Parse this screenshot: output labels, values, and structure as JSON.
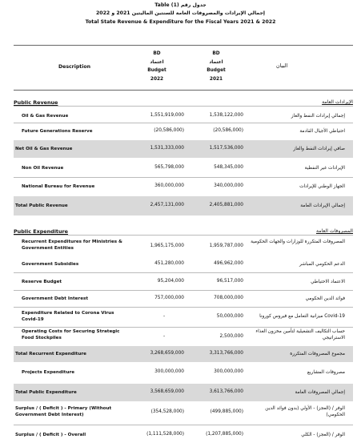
{
  "titles": {
    "line1": "Table (1) جدول رقم",
    "line2": "إجمالي الإيرادات والمصروفات العامة للسنتين الماليتين 2021 و 2022",
    "line3": "Total State Revenue & Expenditure for the Fiscal Years 2021 & 2022"
  },
  "header": {
    "description": "Description",
    "arabic_label": "البيان",
    "col2022": [
      "BD",
      "اعتماد",
      "Budget",
      "2022"
    ],
    "col2021": [
      "BD",
      "اعتماد",
      "Budget",
      "2021"
    ]
  },
  "sections": {
    "revenue": {
      "title": "Public Revenue",
      "arabic": "الإيرادات العامة"
    },
    "expenditure": {
      "title": "Public Expenditure",
      "arabic": "المصروفات العامة"
    }
  },
  "rows": [
    {
      "label": "Oil & Gas Revenue",
      "v2022": "1,551,919,000",
      "v2021": "1,538,122,000",
      "ar": "إجمالي إيرادات النفط والغاز"
    },
    {
      "label": "Future Generations Reserve",
      "v2022": "(20,586,000)",
      "v2021": "(20,586,000)",
      "ar": "احتياطي الأجيال القادمة"
    },
    {
      "label": "Net Oil & Gas Revenue",
      "v2022": "1,531,333,000",
      "v2021": "1,517,536,000",
      "ar": "صافي إيرادات النفط والغاز"
    },
    {
      "label": "Non Oil Revenue",
      "v2022": "565,798,000",
      "v2021": "548,345,000",
      "ar": "الإيرادات غير النفطية"
    },
    {
      "label": "National Bureau for Revenue",
      "v2022": "360,000,000",
      "v2021": "340,000,000",
      "ar": "الجهاز الوطني للإيرادات"
    },
    {
      "label": "Total Public Revenue",
      "v2022": "2,457,131,000",
      "v2021": "2,405,881,000",
      "ar": "إجمالي الإيرادات العامة"
    },
    {
      "label": "Recurrent Expenditures for Ministries & Government Entities",
      "v2022": "1,965,175,000",
      "v2021": "1,959,787,000",
      "ar": "المصروفات المتكررة للوزارات والجهات الحكومية"
    },
    {
      "label": "Government Subsidies",
      "v2022": "451,280,000",
      "v2021": "496,962,000",
      "ar": "الدعم الحكومي المباشر"
    },
    {
      "label": "Reserve Budget",
      "v2022": "95,204,000",
      "v2021": "96,517,000",
      "ar": "الاعتماد الاحتياطي"
    },
    {
      "label": "Government Debt Interest",
      "v2022": "757,000,000",
      "v2021": "708,000,000",
      "ar": "فوائد الدين الحكومي"
    },
    {
      "label": "Expenditure Related to Corona Virus Covid-19",
      "v2022": "-",
      "v2021": "50,000,000",
      "ar": "ميزانية التعامل مع فيروس كورونا Covid-19"
    },
    {
      "label": "Operating Costs for Securing Strategic Food Stockpiles",
      "v2022": "-",
      "v2021": "2,500,000",
      "ar": "حساب التكاليف التشغيلية لتأمين مخزون الغذاء الاستراتيجي"
    },
    {
      "label": "Total Recurrent Expenditure",
      "v2022": "3,268,659,000",
      "v2021": "3,313,766,000",
      "ar": "مجموع المصروفات المتكررة"
    },
    {
      "label": "Projects  Expenditure",
      "v2022": "300,000,000",
      "v2021": "300,000,000",
      "ar": "مصروفات المشاريع"
    },
    {
      "label": "Total Public Expenditure",
      "v2022": "3,568,659,000",
      "v2021": "3,613,766,000",
      "ar": "إجمالي المصروفات العامة"
    },
    {
      "label": "Surplus / ( Deficit ) - Primary (Without Government Debt Interest)",
      "v2022": "(354,528,000)",
      "v2021": "(499,885,000)",
      "ar": "الوفر / (العجز) - الأولي (بدون فوائد الدين الحكومي)"
    },
    {
      "label": "Surplus / ( Deficit ) - Overall",
      "v2022": "(1,111,528,000)",
      "v2021": "(1,207,885,000)",
      "ar": "الوفر / (العجز) - الكلي"
    }
  ]
}
